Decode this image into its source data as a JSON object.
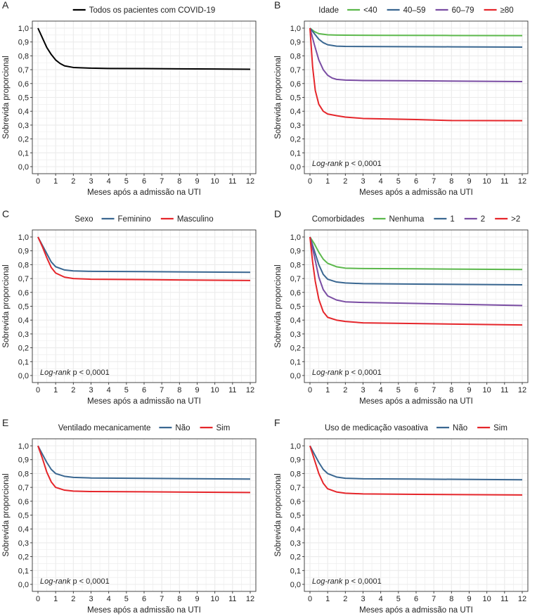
{
  "figure": {
    "colors": {
      "green": "#5cb84c",
      "blue": "#3a6791",
      "purple": "#7a4da3",
      "red": "#e5262b",
      "black": "#000000",
      "grid": "#ebebeb",
      "border": "#333333"
    }
  },
  "chart_data": [
    {
      "panel": "A",
      "type": "line",
      "title": "",
      "xlabel": "Meses após a admissão na UTI",
      "ylabel": "Sobrevida proporcional",
      "xlim": [
        0,
        12
      ],
      "ylim": [
        0,
        1
      ],
      "xticks": [
        "0",
        "1",
        "2",
        "3",
        "4",
        "5",
        "6",
        "7",
        "8",
        "9",
        "10",
        "11",
        "12"
      ],
      "yticks": [
        "0,0",
        "0,1",
        "0,2",
        "0,3",
        "0,4",
        "0,5",
        "0,6",
        "0,7",
        "0,8",
        "0,9",
        "1,0"
      ],
      "legend_title": "",
      "annotation": "",
      "series": [
        {
          "name": "Todos os pacientes com COVID-19",
          "color": "#000000",
          "x": [
            0,
            0.25,
            0.5,
            0.75,
            1,
            1.25,
            1.5,
            2,
            3,
            4,
            6,
            8,
            10,
            12
          ],
          "y": [
            1.0,
            0.93,
            0.86,
            0.81,
            0.77,
            0.745,
            0.728,
            0.716,
            0.711,
            0.709,
            0.708,
            0.706,
            0.705,
            0.703
          ]
        }
      ]
    },
    {
      "panel": "B",
      "type": "line",
      "title": "",
      "xlabel": "Meses após a admissão na UTI",
      "ylabel": "Sobrevida proporcional",
      "xlim": [
        0,
        12
      ],
      "ylim": [
        0,
        1
      ],
      "xticks": [
        "0",
        "1",
        "2",
        "3",
        "4",
        "5",
        "6",
        "7",
        "8",
        "9",
        "10",
        "11",
        "12"
      ],
      "yticks": [
        "0,0",
        "0,1",
        "0,2",
        "0,3",
        "0,4",
        "0,5",
        "0,6",
        "0,7",
        "0,8",
        "0,9",
        "1,0"
      ],
      "legend_title": "Idade",
      "annotation": {
        "italic": "Log-rank",
        "rest": " p < 0,0001"
      },
      "series": [
        {
          "name": "<40",
          "color": "#5cb84c",
          "x": [
            0,
            0.25,
            0.5,
            1,
            1.5,
            2,
            4,
            8,
            12
          ],
          "y": [
            1.0,
            0.975,
            0.96,
            0.952,
            0.95,
            0.949,
            0.948,
            0.947,
            0.946
          ]
        },
        {
          "name": "40–59",
          "color": "#3a6791",
          "x": [
            0,
            0.25,
            0.5,
            0.75,
            1,
            1.5,
            2,
            4,
            8,
            12
          ],
          "y": [
            1.0,
            0.96,
            0.92,
            0.895,
            0.88,
            0.87,
            0.868,
            0.867,
            0.865,
            0.863
          ]
        },
        {
          "name": "60–79",
          "color": "#7a4da3",
          "x": [
            0,
            0.25,
            0.5,
            0.75,
            1,
            1.25,
            1.5,
            2,
            3,
            6,
            12
          ],
          "y": [
            1.0,
            0.88,
            0.77,
            0.7,
            0.66,
            0.64,
            0.63,
            0.625,
            0.622,
            0.62,
            0.614
          ]
        },
        {
          "name": "≥80",
          "color": "#e5262b",
          "x": [
            0,
            0.15,
            0.3,
            0.5,
            0.75,
            1,
            1.5,
            2,
            3,
            6,
            8,
            12
          ],
          "y": [
            1.0,
            0.72,
            0.55,
            0.45,
            0.4,
            0.38,
            0.368,
            0.358,
            0.348,
            0.34,
            0.333,
            0.332
          ]
        }
      ]
    },
    {
      "panel": "C",
      "type": "line",
      "title": "",
      "xlabel": "Meses após a admissão na UTI",
      "ylabel": "Sobrevida proporcional",
      "xlim": [
        0,
        12
      ],
      "ylim": [
        0,
        1
      ],
      "xticks": [
        "0",
        "1",
        "2",
        "3",
        "4",
        "5",
        "6",
        "7",
        "8",
        "9",
        "10",
        "11",
        "12"
      ],
      "yticks": [
        "0,0",
        "0,1",
        "0,2",
        "0,3",
        "0,4",
        "0,5",
        "0,6",
        "0,7",
        "0,8",
        "0,9",
        "1,0"
      ],
      "legend_title": "Sexo",
      "annotation": {
        "italic": "Log-rank",
        "rest": " p < 0,0001"
      },
      "series": [
        {
          "name": "Feminino",
          "color": "#3a6791",
          "x": [
            0,
            0.25,
            0.5,
            0.75,
            1,
            1.5,
            2,
            3,
            6,
            12
          ],
          "y": [
            1.0,
            0.94,
            0.88,
            0.82,
            0.785,
            0.762,
            0.755,
            0.752,
            0.75,
            0.745
          ]
        },
        {
          "name": "Masculino",
          "color": "#e5262b",
          "x": [
            0,
            0.25,
            0.5,
            0.75,
            1,
            1.5,
            2,
            3,
            6,
            12
          ],
          "y": [
            1.0,
            0.93,
            0.85,
            0.78,
            0.74,
            0.71,
            0.7,
            0.695,
            0.692,
            0.686
          ]
        }
      ]
    },
    {
      "panel": "D",
      "type": "line",
      "title": "",
      "xlabel": "Meses após a admissão na UTI",
      "ylabel": "Sobrevida proporcional",
      "xlim": [
        0,
        12
      ],
      "ylim": [
        0,
        1
      ],
      "xticks": [
        "0",
        "1",
        "2",
        "3",
        "4",
        "5",
        "6",
        "7",
        "8",
        "9",
        "10",
        "11",
        "12"
      ],
      "yticks": [
        "0,0",
        "0,1",
        "0,2",
        "0,3",
        "0,4",
        "0,5",
        "0,6",
        "0,7",
        "0,8",
        "0,9",
        "1,0"
      ],
      "legend_title": "Comorbidades",
      "annotation": {
        "italic": "Log-rank",
        "rest": " p < 0,0001"
      },
      "series": [
        {
          "name": "Nenhuma",
          "color": "#5cb84c",
          "x": [
            0,
            0.25,
            0.5,
            0.75,
            1,
            1.5,
            2,
            3,
            6,
            12
          ],
          "y": [
            1.0,
            0.95,
            0.89,
            0.84,
            0.81,
            0.785,
            0.775,
            0.772,
            0.77,
            0.765
          ]
        },
        {
          "name": "1",
          "color": "#3a6791",
          "x": [
            0,
            0.25,
            0.5,
            0.75,
            1,
            1.5,
            2,
            3,
            6,
            12
          ],
          "y": [
            1.0,
            0.9,
            0.8,
            0.73,
            0.695,
            0.675,
            0.668,
            0.663,
            0.66,
            0.655
          ]
        },
        {
          "name": "2",
          "color": "#7a4da3",
          "x": [
            0,
            0.25,
            0.5,
            0.75,
            1,
            1.5,
            2,
            3,
            6,
            12
          ],
          "y": [
            1.0,
            0.86,
            0.71,
            0.62,
            0.575,
            0.545,
            0.532,
            0.527,
            0.52,
            0.505
          ]
        },
        {
          "name": ">2",
          "color": "#e5262b",
          "x": [
            0,
            0.15,
            0.3,
            0.5,
            0.75,
            1,
            1.5,
            2,
            3,
            6,
            12
          ],
          "y": [
            1.0,
            0.82,
            0.68,
            0.55,
            0.46,
            0.42,
            0.4,
            0.39,
            0.38,
            0.375,
            0.365
          ]
        }
      ]
    },
    {
      "panel": "E",
      "type": "line",
      "title": "",
      "xlabel": "Meses após a admissão na UTI",
      "ylabel": "Sobrevida proporcional",
      "xlim": [
        0,
        12
      ],
      "ylim": [
        0,
        1
      ],
      "xticks": [
        "0",
        "1",
        "2",
        "3",
        "4",
        "5",
        "6",
        "7",
        "8",
        "9",
        "10",
        "11",
        "12"
      ],
      "yticks": [
        "0,0",
        "0,1",
        "0,2",
        "0,3",
        "0,4",
        "0,5",
        "0,6",
        "0,7",
        "0,8",
        "0,9",
        "1,0"
      ],
      "legend_title": "Ventilado mecanicamente",
      "annotation": {
        "italic": "Log-rank",
        "rest": " p < 0,0001"
      },
      "series": [
        {
          "name": "Não",
          "color": "#3a6791",
          "x": [
            0,
            0.25,
            0.5,
            0.75,
            1,
            1.5,
            2,
            3,
            6,
            12
          ],
          "y": [
            1.0,
            0.94,
            0.88,
            0.83,
            0.8,
            0.78,
            0.772,
            0.768,
            0.765,
            0.76
          ]
        },
        {
          "name": "Sim",
          "color": "#e5262b",
          "x": [
            0,
            0.25,
            0.5,
            0.75,
            1,
            1.5,
            2,
            3,
            6,
            12
          ],
          "y": [
            1.0,
            0.91,
            0.81,
            0.74,
            0.7,
            0.68,
            0.673,
            0.67,
            0.668,
            0.663
          ]
        }
      ]
    },
    {
      "panel": "F",
      "type": "line",
      "title": "",
      "xlabel": "Meses após a admissão na UTI",
      "ylabel": "Sobrevida proporcional",
      "xlim": [
        0,
        12
      ],
      "ylim": [
        0,
        1
      ],
      "xticks": [
        "0",
        "1",
        "2",
        "3",
        "4",
        "5",
        "6",
        "7",
        "8",
        "9",
        "10",
        "11",
        "12"
      ],
      "yticks": [
        "0,0",
        "0,1",
        "0,2",
        "0,3",
        "0,4",
        "0,5",
        "0,6",
        "0,7",
        "0,8",
        "0,9",
        "1,0"
      ],
      "legend_title": "Uso de medicação vasoativa",
      "annotation": {
        "italic": "Log-rank",
        "rest": " p < 0,0001"
      },
      "series": [
        {
          "name": "Não",
          "color": "#3a6791",
          "x": [
            0,
            0.25,
            0.5,
            0.75,
            1,
            1.5,
            2,
            3,
            6,
            12
          ],
          "y": [
            1.0,
            0.94,
            0.88,
            0.83,
            0.8,
            0.775,
            0.766,
            0.762,
            0.76,
            0.755
          ]
        },
        {
          "name": "Sim",
          "color": "#e5262b",
          "x": [
            0,
            0.25,
            0.5,
            0.75,
            1,
            1.5,
            2,
            3,
            6,
            12
          ],
          "y": [
            1.0,
            0.9,
            0.8,
            0.73,
            0.69,
            0.667,
            0.658,
            0.653,
            0.65,
            0.645
          ]
        }
      ]
    }
  ]
}
